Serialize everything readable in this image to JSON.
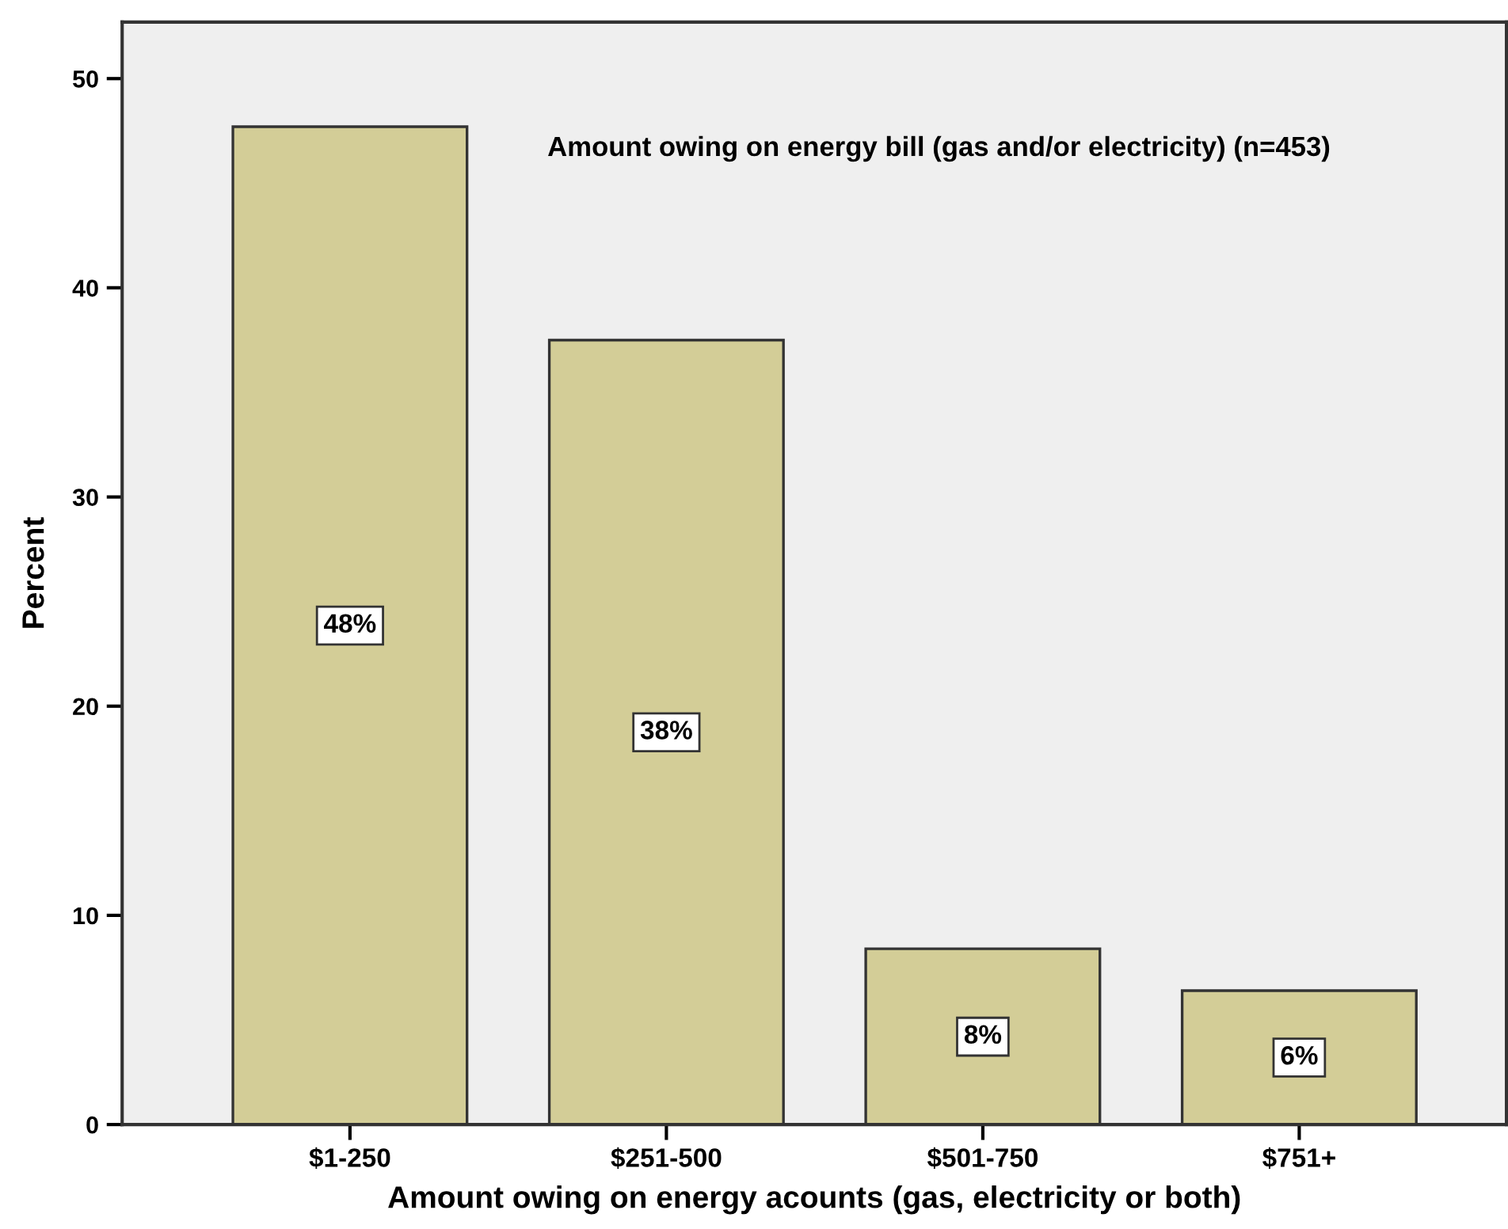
{
  "chart_data": {
    "type": "bar",
    "title": "Amount owing on energy bill (gas and/or electricity) (n=453)",
    "xlabel": "Amount owing on energy acounts (gas, electricity or both)",
    "ylabel": "Percent",
    "categories": [
      "$1-250",
      "$251-500",
      "$501-750",
      "$751+"
    ],
    "values": [
      47.7,
      37.5,
      8.4,
      6.4
    ],
    "value_labels": [
      "48%",
      "38%",
      "8%",
      "6%"
    ],
    "color": "#d3cd97",
    "ylim": [
      0,
      52.7
    ],
    "yticks": [
      0,
      10,
      20,
      30,
      40,
      50
    ],
    "grid": false,
    "legend": false
  }
}
